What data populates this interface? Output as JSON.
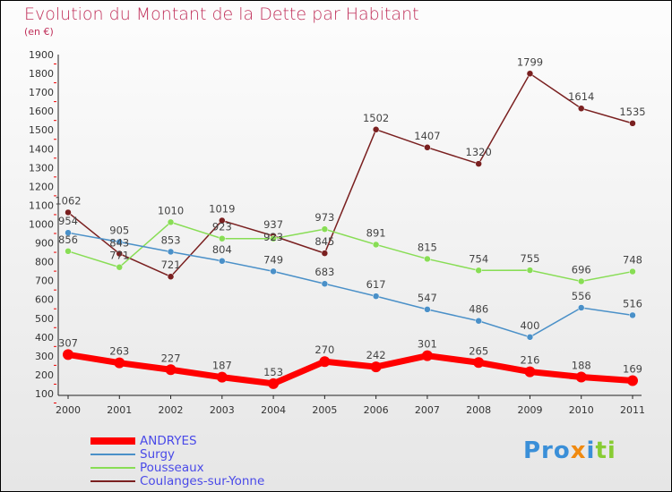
{
  "chart_data": {
    "type": "line",
    "title": "Evolution du Montant de la Dette par Habitant",
    "subtitle": "(en €)",
    "x": [
      "2000",
      "2001",
      "2002",
      "2003",
      "2004",
      "2005",
      "2006",
      "2007",
      "2008",
      "2009",
      "2010",
      "2011"
    ],
    "ylim": [
      100,
      1900
    ],
    "yticks": [
      100,
      200,
      300,
      400,
      500,
      600,
      700,
      800,
      900,
      1000,
      1100,
      1200,
      1300,
      1400,
      1500,
      1600,
      1700,
      1800,
      1900
    ],
    "series": [
      {
        "name": "ANDRYES",
        "color": "#ff0000",
        "values": [
          307,
          263,
          227,
          187,
          153,
          270,
          242,
          301,
          265,
          216,
          188,
          169
        ]
      },
      {
        "name": "Surgy",
        "color": "#4a90c8",
        "values": [
          954,
          905,
          853,
          804,
          749,
          683,
          617,
          547,
          486,
          400,
          556,
          516
        ]
      },
      {
        "name": "Pousseaux",
        "color": "#88dd55",
        "values": [
          856,
          771,
          1010,
          923,
          923,
          973,
          891,
          815,
          754,
          755,
          696,
          748
        ]
      },
      {
        "name": "Coulanges-sur-Yonne",
        "color": "#7a2020",
        "values": [
          1062,
          843,
          721,
          1019,
          937,
          845,
          1502,
          1407,
          1320,
          1799,
          1614,
          1535
        ]
      }
    ],
    "legend": "bottom-left"
  },
  "logo": "Proxiti"
}
